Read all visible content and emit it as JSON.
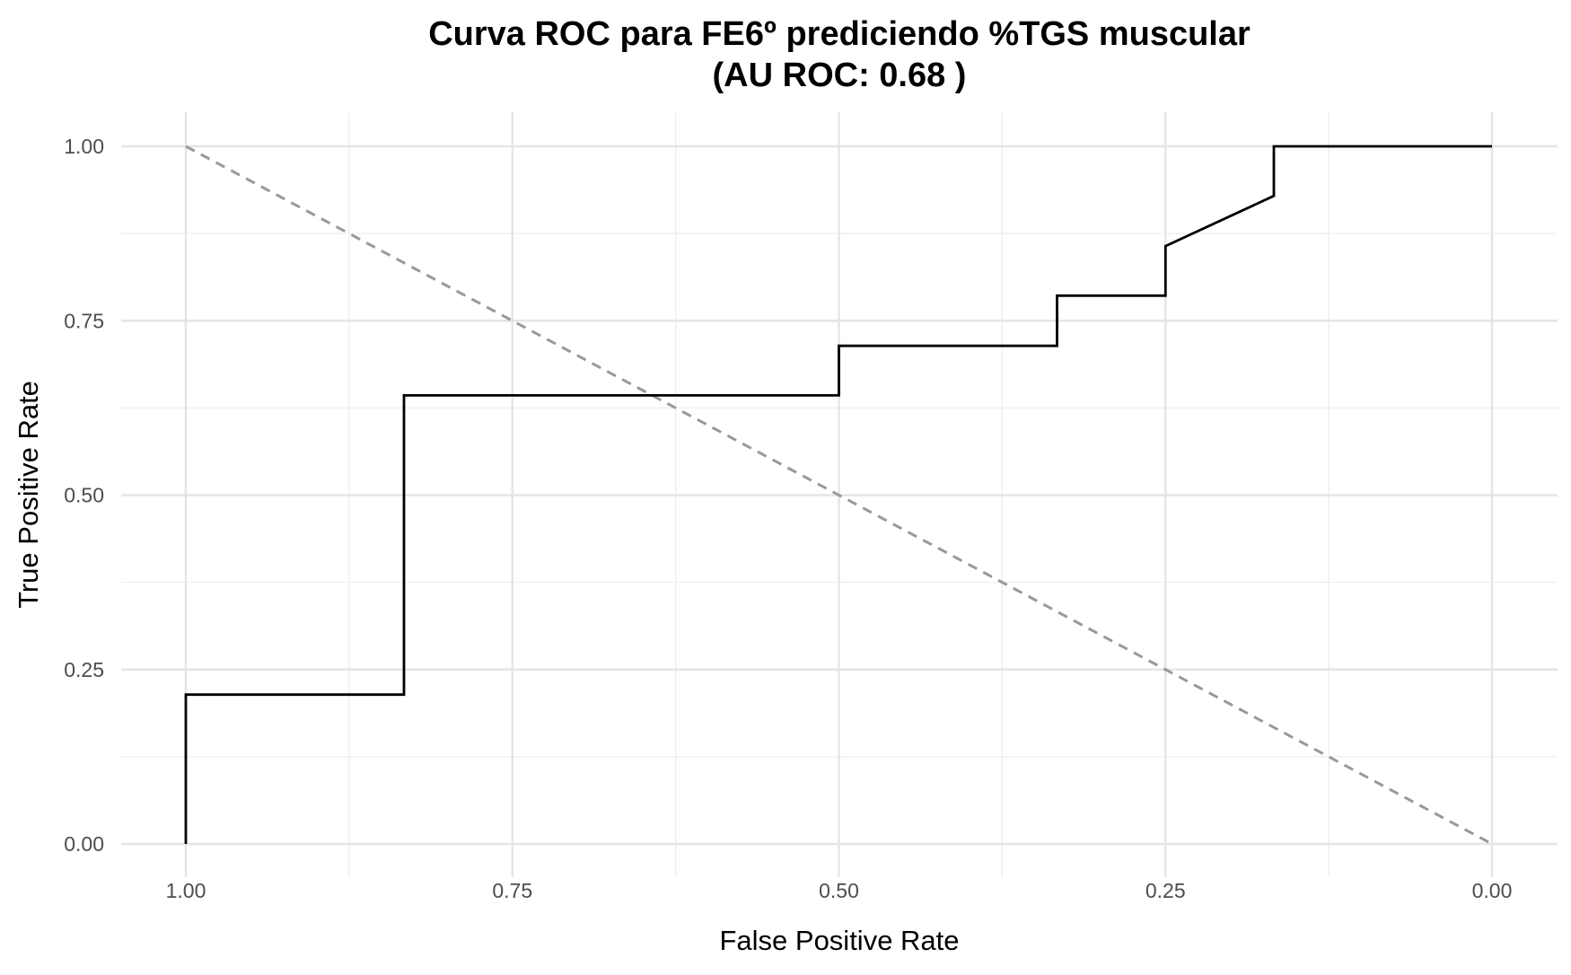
{
  "chart_data": {
    "type": "line",
    "title_line1": "Curva ROC para FE6º prediciendo %TGS muscular",
    "title_line2": "(AU ROC: 0.68 )",
    "xlabel": "False Positive Rate",
    "ylabel": "True Positive Rate",
    "x_reversed": true,
    "xlim": [
      1.0,
      0.0
    ],
    "ylim": [
      0.0,
      1.0
    ],
    "x_ticks": [
      {
        "value": 1.0,
        "label": "1.00"
      },
      {
        "value": 0.75,
        "label": "0.75"
      },
      {
        "value": 0.5,
        "label": "0.50"
      },
      {
        "value": 0.25,
        "label": "0.25"
      },
      {
        "value": 0.0,
        "label": "0.00"
      }
    ],
    "y_ticks": [
      {
        "value": 0.0,
        "label": "0.00"
      },
      {
        "value": 0.25,
        "label": "0.25"
      },
      {
        "value": 0.5,
        "label": "0.50"
      },
      {
        "value": 0.75,
        "label": "0.75"
      },
      {
        "value": 1.0,
        "label": "1.00"
      }
    ],
    "grid": true,
    "legend": "none",
    "series": [
      {
        "color": "#000000",
        "style": "solid",
        "x": [
          1.0,
          1.0,
          0.833,
          0.833,
          0.5,
          0.5,
          0.333,
          0.333,
          0.25,
          0.25,
          0.167,
          0.167,
          0.0
        ],
        "y": [
          0.0,
          0.214,
          0.214,
          0.643,
          0.643,
          0.714,
          0.714,
          0.786,
          0.786,
          0.857,
          0.929,
          1.0,
          1.0
        ]
      }
    ],
    "reference_line": {
      "color": "#999999",
      "style": "dashed",
      "x": [
        1.0,
        0.0
      ],
      "y": [
        1.0,
        0.0
      ]
    },
    "colors": {
      "background": "#ffffff",
      "grid_major": "#e5e5e5",
      "grid_minor": "#f0f0f0",
      "tick_text": "#4d4d4d"
    }
  }
}
